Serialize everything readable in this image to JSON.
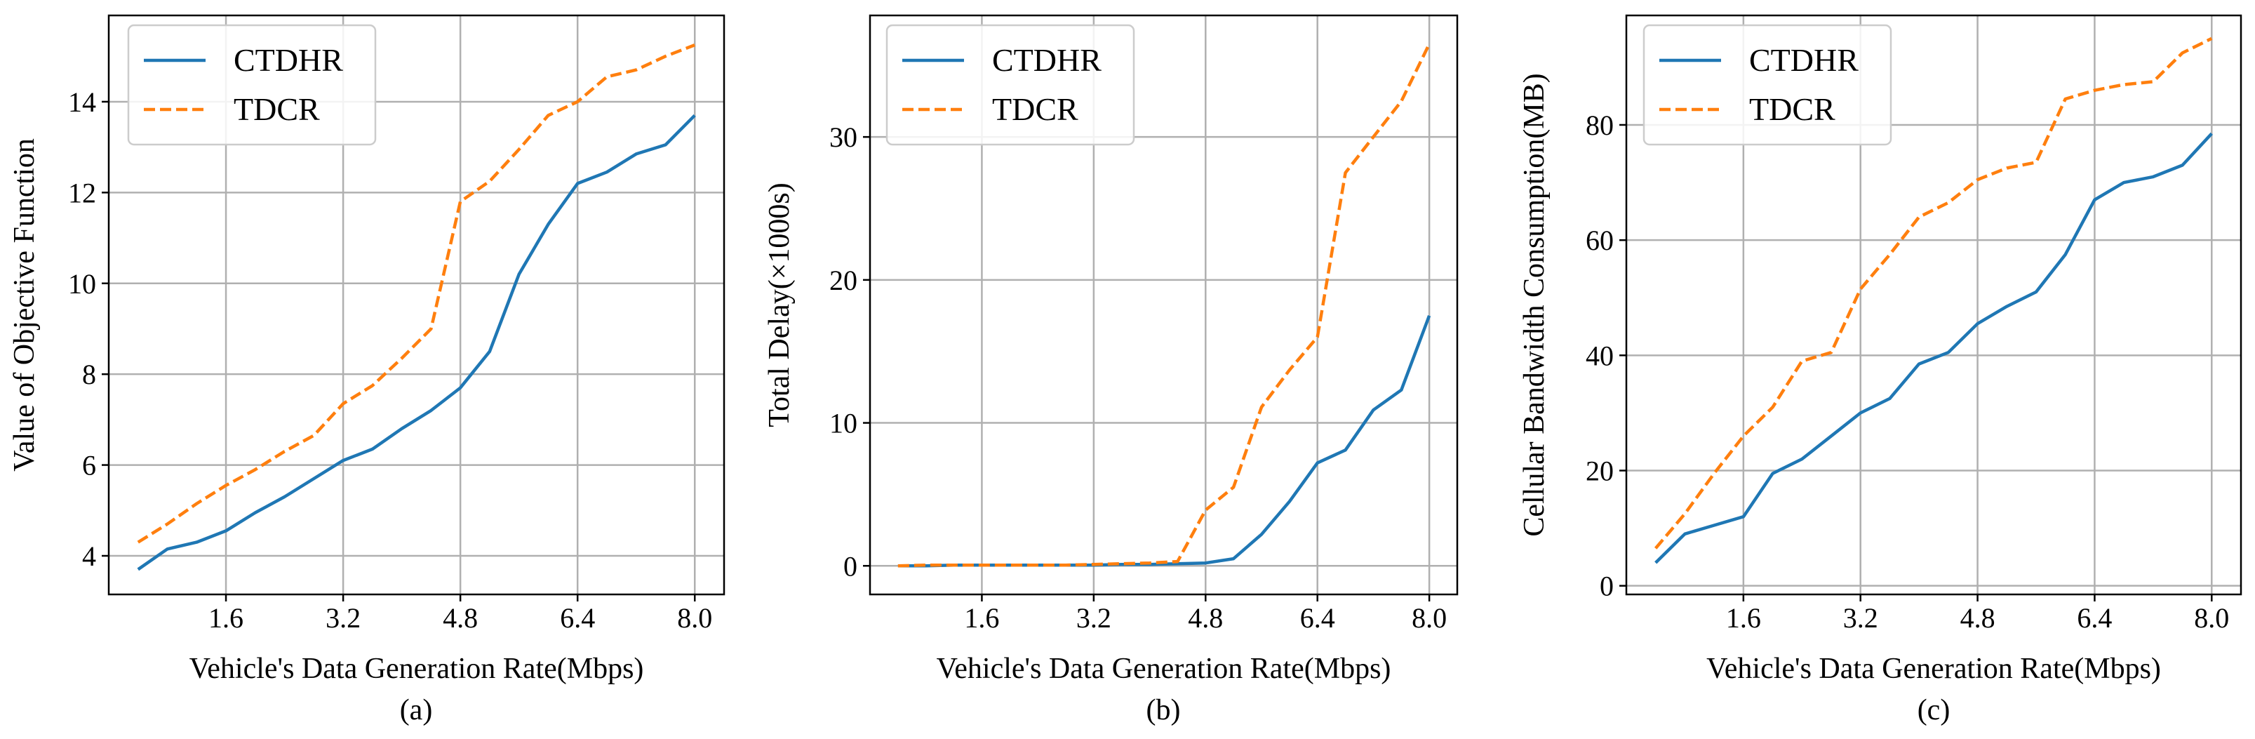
{
  "colors": {
    "ctdhr": "#1f77b4",
    "tdcr": "#ff7f0e",
    "grid": "#b0b0b0",
    "axis": "#000000",
    "legend_border": "#cccccc"
  },
  "chart_data": [
    {
      "type": "line",
      "caption": "(a)",
      "xlabel": "Vehicle's Data Generation Rate(Mbps)",
      "ylabel": "Value of Objective Function",
      "xticks": [
        "1.6",
        "3.2",
        "4.8",
        "6.4",
        "8.0"
      ],
      "xtick_values": [
        1.6,
        3.2,
        4.8,
        6.4,
        8.0
      ],
      "yticks": [
        "4",
        "6",
        "8",
        "10",
        "12",
        "14"
      ],
      "ytick_values": [
        4,
        6,
        8,
        10,
        12,
        14
      ],
      "xlim": [
        0.0,
        8.4
      ],
      "ylim": [
        3.15,
        15.9
      ],
      "legend_position": "top-left",
      "x": [
        0.4,
        0.8,
        1.2,
        1.6,
        2.0,
        2.4,
        2.8,
        3.2,
        3.6,
        4.0,
        4.4,
        4.8,
        5.2,
        5.6,
        6.0,
        6.4,
        6.8,
        7.2,
        7.6,
        8.0
      ],
      "series": [
        {
          "name": "CTDHR",
          "style": "solid",
          "values": [
            3.7,
            4.15,
            4.3,
            4.55,
            4.95,
            5.3,
            5.7,
            6.1,
            6.35,
            6.8,
            7.2,
            7.7,
            8.5,
            10.2,
            11.3,
            12.2,
            12.45,
            12.85,
            13.05,
            13.7
          ]
        },
        {
          "name": "TDCR",
          "style": "dashed",
          "values": [
            4.3,
            4.7,
            5.15,
            5.55,
            5.9,
            6.3,
            6.65,
            7.35,
            7.75,
            8.35,
            9.0,
            11.8,
            12.25,
            12.95,
            13.7,
            14.0,
            14.55,
            14.7,
            15.0,
            15.25
          ]
        }
      ]
    },
    {
      "type": "line",
      "caption": "(b)",
      "xlabel": "Vehicle's Data Generation Rate(Mbps)",
      "ylabel": "Total Delay(×1000s)",
      "xticks": [
        "1.6",
        "3.2",
        "4.8",
        "6.4",
        "8.0"
      ],
      "xtick_values": [
        1.6,
        3.2,
        4.8,
        6.4,
        8.0
      ],
      "yticks": [
        "0",
        "10",
        "20",
        "30"
      ],
      "ytick_values": [
        0,
        10,
        20,
        30
      ],
      "xlim": [
        0.0,
        8.4
      ],
      "ylim": [
        -2.0,
        38.5
      ],
      "legend_position": "top-left",
      "x": [
        0.4,
        0.8,
        1.2,
        1.6,
        2.0,
        2.4,
        2.8,
        3.2,
        3.6,
        4.0,
        4.4,
        4.8,
        5.2,
        5.6,
        6.0,
        6.4,
        6.8,
        7.2,
        7.6,
        8.0
      ],
      "series": [
        {
          "name": "CTDHR",
          "style": "solid",
          "values": [
            0.0,
            0.0,
            0.05,
            0.05,
            0.05,
            0.05,
            0.05,
            0.05,
            0.1,
            0.1,
            0.15,
            0.2,
            0.5,
            2.2,
            4.5,
            7.2,
            8.1,
            10.9,
            12.3,
            17.5
          ]
        },
        {
          "name": "TDCR",
          "style": "dashed",
          "values": [
            0.0,
            0.05,
            0.05,
            0.05,
            0.05,
            0.05,
            0.05,
            0.1,
            0.15,
            0.2,
            0.3,
            3.9,
            5.5,
            11.1,
            13.7,
            16.0,
            27.5,
            30.0,
            32.5,
            36.5
          ]
        }
      ]
    },
    {
      "type": "line",
      "caption": "(c)",
      "xlabel": "Vehicle's Data Generation Rate(Mbps)",
      "ylabel": "Cellular Bandwidth Consumption(MB)",
      "xticks": [
        "1.6",
        "3.2",
        "4.8",
        "6.4",
        "8.0"
      ],
      "xtick_values": [
        1.6,
        3.2,
        4.8,
        6.4,
        8.0
      ],
      "yticks": [
        "0",
        "20",
        "40",
        "60",
        "80"
      ],
      "ytick_values": [
        0,
        20,
        40,
        60,
        80
      ],
      "xlim": [
        0.0,
        8.4
      ],
      "ylim": [
        -1.5,
        99.0
      ],
      "legend_position": "top-left",
      "x": [
        0.4,
        0.8,
        1.2,
        1.6,
        2.0,
        2.4,
        2.8,
        3.2,
        3.6,
        4.0,
        4.4,
        4.8,
        5.2,
        5.6,
        6.0,
        6.4,
        6.8,
        7.2,
        7.6,
        8.0
      ],
      "series": [
        {
          "name": "CTDHR",
          "style": "solid",
          "values": [
            4.0,
            9.0,
            10.5,
            12.0,
            19.5,
            22.0,
            26.0,
            30.0,
            32.5,
            38.5,
            40.5,
            45.5,
            48.5,
            51.0,
            57.5,
            67.0,
            70.0,
            71.0,
            73.0,
            78.5
          ]
        },
        {
          "name": "TDCR",
          "style": "dashed",
          "values": [
            6.5,
            12.5,
            19.5,
            26.0,
            31.0,
            39.0,
            40.5,
            51.5,
            57.5,
            64.0,
            66.5,
            70.5,
            72.5,
            73.5,
            84.5,
            86.0,
            87.0,
            87.5,
            92.5,
            95.0
          ]
        }
      ]
    }
  ]
}
